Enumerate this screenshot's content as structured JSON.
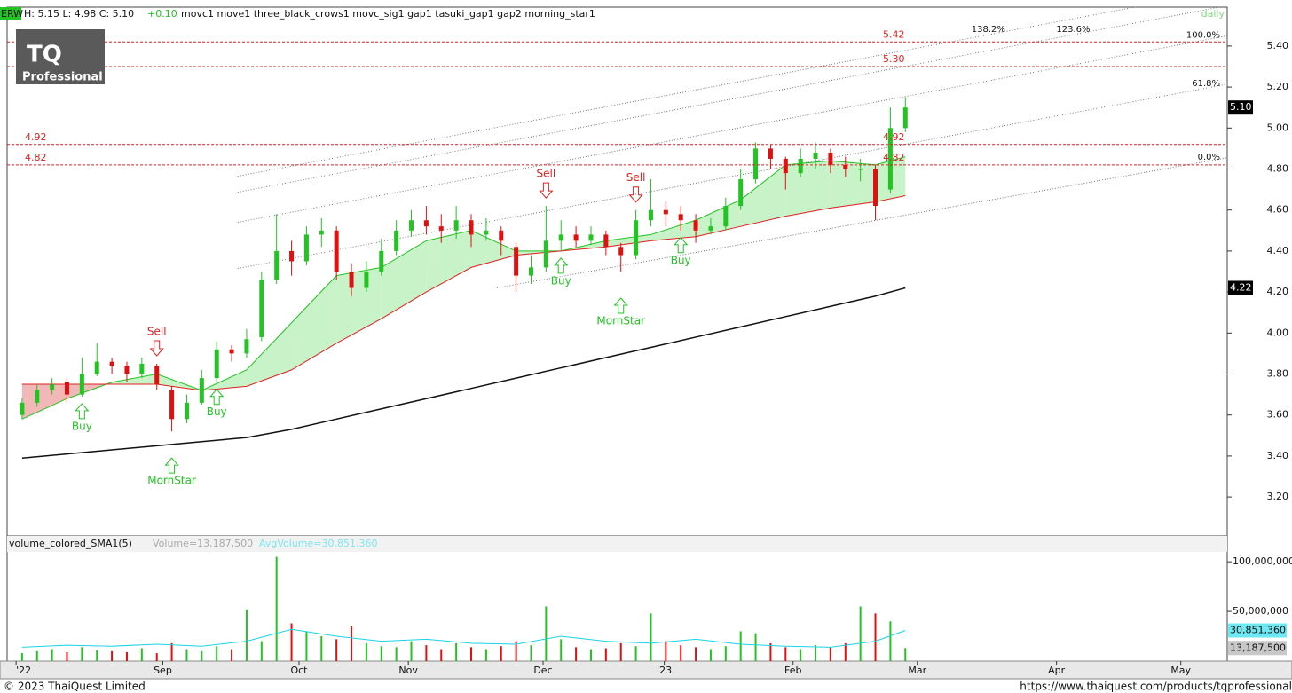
{
  "chart_data": {
    "type": "candlestick",
    "symbol": "ERW",
    "hlc": "H: 5.15 L: 4.98 C: 5.10",
    "change": "+0.10",
    "indicators": "movc1 move1 three_black_crows1 movc_sig1 gap1 tasuki_gap1 gap2 morning_star1",
    "period": "daily",
    "logo": {
      "top": "TQ",
      "bottom": "Professional"
    },
    "xlim": [
      -1,
      80.5
    ],
    "xticks": [
      {
        "value": -0.4,
        "label": "'22"
      },
      {
        "value": 9.4,
        "label": "Sep"
      },
      {
        "value": 18.5,
        "label": "Oct"
      },
      {
        "value": 25.8,
        "label": "Nov"
      },
      {
        "value": 34.8,
        "label": "Dec"
      },
      {
        "value": 42.9,
        "label": "'23"
      },
      {
        "value": 51.5,
        "label": "Feb"
      },
      {
        "value": 59.8,
        "label": "Mar"
      },
      {
        "value": 69.1,
        "label": "Apr"
      },
      {
        "value": 77.4,
        "label": "May"
      }
    ],
    "ylim": [
      3.01,
      5.59
    ],
    "yticks": [
      {
        "value": 3.2,
        "label": "3.20"
      },
      {
        "value": 3.4,
        "label": "3.40"
      },
      {
        "value": 3.6,
        "label": "3.60"
      },
      {
        "value": 3.8,
        "label": "3.80"
      },
      {
        "value": 4.0,
        "label": "4.00"
      },
      {
        "value": 4.2,
        "label": "4.20"
      },
      {
        "value": 4.4,
        "label": "4.40"
      },
      {
        "value": 4.6,
        "label": "4.60"
      },
      {
        "value": 4.8,
        "label": "4.80"
      },
      {
        "value": 5.0,
        "label": "5.00"
      },
      {
        "value": 5.2,
        "label": "5.20"
      },
      {
        "value": 5.4,
        "label": "5.40"
      }
    ],
    "up_color": "#22c322",
    "down_color": "#e01010",
    "open": [
      3.6,
      3.66,
      3.72,
      3.76,
      3.7,
      3.8,
      3.86,
      3.84,
      3.8,
      3.84,
      3.72,
      3.58,
      3.66,
      3.78,
      3.92,
      3.9,
      3.98,
      4.26,
      4.4,
      4.35,
      4.48,
      4.5,
      4.3,
      4.22,
      4.3,
      4.4,
      4.5,
      4.55,
      4.52,
      4.5,
      4.55,
      4.48,
      4.5,
      4.42,
      4.28,
      4.32,
      4.45,
      4.48,
      4.45,
      4.48,
      4.42,
      4.38,
      4.55,
      4.6,
      4.58,
      4.55,
      4.5,
      4.52,
      4.62,
      4.75,
      4.9,
      4.85,
      4.78,
      4.85,
      4.88,
      4.82,
      4.8,
      4.8,
      4.7,
      5.0
    ],
    "high": [
      3.68,
      3.75,
      3.78,
      3.78,
      3.88,
      3.95,
      3.88,
      3.86,
      3.88,
      3.85,
      3.74,
      3.7,
      3.82,
      3.96,
      3.94,
      4.02,
      4.3,
      4.58,
      4.45,
      4.52,
      4.56,
      4.52,
      4.34,
      4.35,
      4.46,
      4.55,
      4.6,
      4.62,
      4.58,
      4.62,
      4.58,
      4.56,
      4.52,
      4.44,
      4.38,
      4.62,
      4.55,
      4.52,
      4.52,
      4.5,
      4.44,
      4.6,
      4.75,
      4.64,
      4.62,
      4.58,
      4.56,
      4.66,
      4.8,
      4.93,
      4.92,
      4.86,
      4.9,
      4.93,
      4.9,
      4.86,
      4.85,
      4.82,
      5.1,
      5.15
    ],
    "low": [
      3.58,
      3.64,
      3.7,
      3.66,
      3.69,
      3.79,
      3.8,
      3.76,
      3.78,
      3.72,
      3.52,
      3.56,
      3.65,
      3.76,
      3.86,
      3.88,
      3.96,
      4.24,
      4.28,
      4.33,
      4.42,
      4.26,
      4.18,
      4.2,
      4.28,
      4.38,
      4.47,
      4.48,
      4.44,
      4.46,
      4.42,
      4.45,
      4.38,
      4.2,
      4.24,
      4.3,
      4.4,
      4.42,
      4.43,
      4.38,
      4.3,
      4.36,
      4.52,
      4.52,
      4.5,
      4.44,
      4.48,
      4.5,
      4.6,
      4.73,
      4.8,
      4.7,
      4.76,
      4.8,
      4.78,
      4.76,
      4.74,
      4.55,
      4.68,
      4.98
    ],
    "close": [
      3.66,
      3.72,
      3.75,
      3.7,
      3.8,
      3.86,
      3.84,
      3.8,
      3.85,
      3.75,
      3.58,
      3.66,
      3.78,
      3.92,
      3.9,
      3.97,
      4.26,
      4.4,
      4.35,
      4.48,
      4.5,
      4.3,
      4.22,
      4.3,
      4.4,
      4.5,
      4.55,
      4.52,
      4.5,
      4.55,
      4.48,
      4.5,
      4.45,
      4.28,
      4.32,
      4.45,
      4.48,
      4.45,
      4.48,
      4.42,
      4.38,
      4.55,
      4.6,
      4.58,
      4.55,
      4.5,
      4.52,
      4.62,
      4.75,
      4.9,
      4.85,
      4.78,
      4.85,
      4.88,
      4.82,
      4.8,
      4.8,
      4.62,
      5.0,
      5.1
    ],
    "ma_x": [
      0,
      3,
      6,
      9,
      12,
      15,
      18,
      21,
      24,
      27,
      30,
      33,
      36,
      39,
      42,
      45,
      48,
      51,
      54,
      57,
      59
    ],
    "ma_lines": [
      {
        "color": "#22c322",
        "values": [
          3.58,
          3.68,
          3.76,
          3.8,
          3.72,
          3.82,
          4.05,
          4.28,
          4.32,
          4.45,
          4.5,
          4.4,
          4.4,
          4.45,
          4.48,
          4.55,
          4.65,
          4.82,
          4.84,
          4.82,
          4.86
        ]
      },
      {
        "color": "#e02020",
        "values": [
          3.75,
          3.75,
          3.75,
          3.75,
          3.72,
          3.74,
          3.82,
          3.95,
          4.07,
          4.2,
          4.32,
          4.38,
          4.4,
          4.42,
          4.45,
          4.47,
          4.52,
          4.57,
          4.61,
          4.64,
          4.67
        ]
      },
      {
        "color": "#111111",
        "values": [
          3.39,
          3.41,
          3.43,
          3.45,
          3.47,
          3.49,
          3.53,
          3.58,
          3.63,
          3.68,
          3.73,
          3.78,
          3.83,
          3.88,
          3.93,
          3.98,
          4.03,
          4.08,
          4.13,
          4.18,
          4.22
        ]
      }
    ],
    "levels": [
      {
        "value": 5.42,
        "label": "5.42"
      },
      {
        "value": 5.3,
        "label": "5.30"
      },
      {
        "value": 4.92,
        "label": "4.92"
      },
      {
        "value": 4.82,
        "label": "4.82"
      }
    ],
    "channels": [
      {
        "label": "138.2%",
        "start": [
          14.4,
          4.765
        ],
        "end": [
          80.5,
          5.675
        ]
      },
      {
        "label": "123.6%",
        "start": [
          14.4,
          4.687
        ],
        "end": [
          80.5,
          5.597
        ]
      },
      {
        "label": "100.0%",
        "start": [
          14.4,
          4.54
        ],
        "end": [
          80.5,
          5.45
        ]
      },
      {
        "label": "61.8%",
        "start": [
          14.4,
          4.315
        ],
        "end": [
          80.5,
          5.214
        ]
      },
      {
        "label": "0.0%",
        "start": [
          31.7,
          4.22
        ],
        "end": [
          80.5,
          4.855
        ]
      }
    ],
    "signals": [
      {
        "label": "Buy",
        "index": 4
      },
      {
        "label": "Sell",
        "index": 9
      },
      {
        "label": "MornStar",
        "index": 10
      },
      {
        "label": "Buy",
        "index": 13
      },
      {
        "label": "Sell",
        "index": 35
      },
      {
        "label": "Buy",
        "index": 36
      },
      {
        "label": "MornStar",
        "index": 40
      },
      {
        "label": "Sell",
        "index": 41
      },
      {
        "label": "Buy",
        "index": 44
      }
    ],
    "last_price": {
      "value": 5.1,
      "label": "5.10"
    },
    "ma_last": {
      "value": 4.22,
      "label": "4.22"
    },
    "volume": {
      "title": "volume_colored_SMA1(5)",
      "volume_text": "Volume=13,187,500",
      "avg_text": "AvgVolume=30,851,360",
      "ylim": [
        0,
        110000000
      ],
      "yticks": [
        {
          "value": 50000000,
          "label": "50,000,000"
        },
        {
          "value": 100000000,
          "label": "100,000,000"
        }
      ],
      "values": [
        8000000,
        10000000,
        12000000,
        9000000,
        14000000,
        11000000,
        10000000,
        9000000,
        13000000,
        8000000,
        18000000,
        12000000,
        10000000,
        15000000,
        12000000,
        52000000,
        20000000,
        105000000,
        38000000,
        30000000,
        25000000,
        22000000,
        35000000,
        18000000,
        15000000,
        14000000,
        20000000,
        16000000,
        12000000,
        18000000,
        14000000,
        12000000,
        15000000,
        20000000,
        16000000,
        55000000,
        22000000,
        14000000,
        12000000,
        13000000,
        18000000,
        15000000,
        48000000,
        20000000,
        16000000,
        14000000,
        12000000,
        15000000,
        30000000,
        28000000,
        18000000,
        14000000,
        12000000,
        16000000,
        14000000,
        18000000,
        55000000,
        48000000,
        40000000,
        13187500
      ],
      "avg_color": "#19d3e6",
      "avg_values": [
        14000000,
        16000000,
        15000000,
        17000000,
        15000000,
        20000000,
        32000000,
        25000000,
        20000000,
        22000000,
        18000000,
        17000000,
        25000000,
        20000000,
        18000000,
        22000000,
        17000000,
        15000000,
        14000000,
        20000000,
        30851360
      ],
      "last_avg": {
        "value": 30851360,
        "label": "30,851,360"
      },
      "last_volume": {
        "value": 13187500,
        "label": "13,187,500"
      }
    },
    "copyright": "© 2023 ThaiQuest Limited",
    "url": "https://www.thaiquest.com/products/tqprofessional"
  }
}
